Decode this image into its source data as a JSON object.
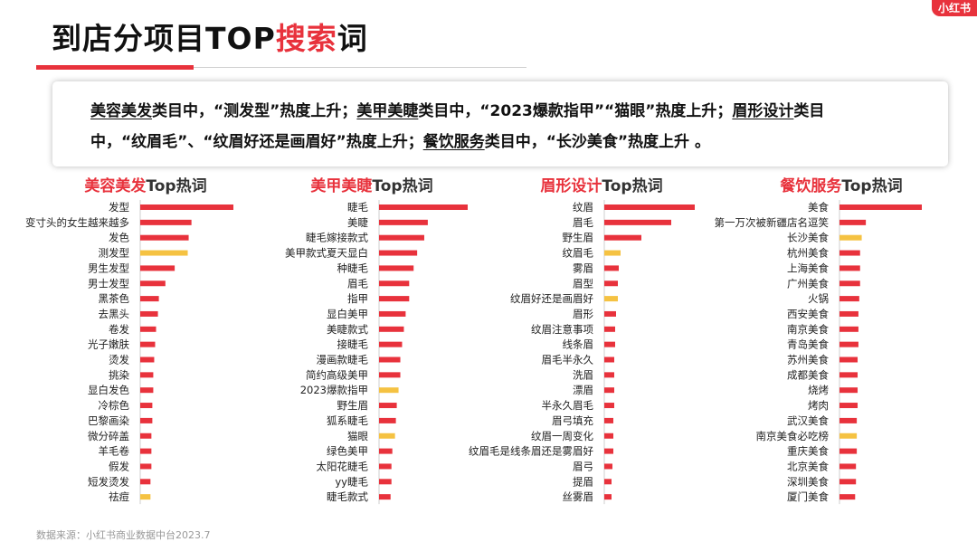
{
  "logo": {
    "text": "小红书"
  },
  "title": {
    "part1": "到店分项目TOP",
    "part2": "搜索",
    "part3": "词"
  },
  "summary": {
    "s1": "美容美发",
    "s2": "类目中，“测发型”热度上升；",
    "s3": "美甲美睫",
    "s4": "类目中，“2023爆款指甲”“猫眼”热度上升；",
    "s5": "眉形设计",
    "s6": "类目",
    "s7": "中，“纹眉毛”、“纹眉好还是画眉好”热度上升；",
    "s8": "餐饮服务",
    "s9": "类目中，“长沙美食”热度上升 。"
  },
  "footer": {
    "text": "数据来源：小红书商业数据中台2023.7"
  },
  "colors": {
    "red": "#e8323c",
    "yellow": "#f5c242"
  },
  "chart_data": [
    {
      "type": "bar",
      "orientation": "horizontal",
      "title": {
        "highlight": "美容美发",
        "rest": "Top热词"
      },
      "categories": [
        "发型",
        "变寸头的女生越来越多",
        "发色",
        "测发型",
        "男生发型",
        "男士发型",
        "黑茶色",
        "去黑头",
        "卷发",
        "光子嫩肤",
        "烫发",
        "挑染",
        "显白发色",
        "冷棕色",
        "巴黎画染",
        "微分碎盖",
        "羊毛卷",
        "假发",
        "短发烫发",
        "祛痘"
      ],
      "values": [
        100,
        55,
        52,
        51,
        37,
        27,
        20,
        19,
        17,
        16,
        15,
        14,
        14,
        13,
        13,
        12,
        12,
        12,
        11,
        11
      ],
      "highlight": [
        3,
        19
      ]
    },
    {
      "type": "bar",
      "orientation": "horizontal",
      "title": {
        "highlight": "美甲美睫",
        "rest": "Top热词"
      },
      "categories": [
        "睫毛",
        "美睫",
        "睫毛嫁接款式",
        "美甲款式夏天显白",
        "种睫毛",
        "眉毛",
        "指甲",
        "显白美甲",
        "美睫款式",
        "接睫毛",
        "漫画款睫毛",
        "简约高级美甲",
        "2023爆款指甲",
        "野生眉",
        "狐系睫毛",
        "猫眼",
        "绿色美甲",
        "太阳花睫毛",
        "yy睫毛",
        "睫毛款式"
      ],
      "values": [
        100,
        55,
        51,
        43,
        39,
        34,
        34,
        30,
        28,
        26,
        24,
        24,
        22,
        20,
        19,
        18,
        15,
        14,
        14,
        13
      ],
      "highlight": [
        12,
        15
      ]
    },
    {
      "type": "bar",
      "orientation": "horizontal",
      "title": {
        "highlight": "眉形设计",
        "rest": "Top热词"
      },
      "categories": [
        "纹眉",
        "眉毛",
        "野生眉",
        "纹眉毛",
        "雾眉",
        "眉型",
        "纹眉好还是画眉好",
        "眉形",
        "纹眉注意事项",
        "线条眉",
        "眉毛半永久",
        "洗眉",
        "漂眉",
        "半永久眉毛",
        "眉弓填充",
        "纹眉一周变化",
        "纹眉毛是线条眉还是雾眉好",
        "眉弓",
        "提眉",
        "丝雾眉"
      ],
      "values": [
        100,
        74,
        41,
        18,
        16,
        15,
        15,
        13,
        12,
        12,
        11,
        11,
        11,
        11,
        10,
        10,
        10,
        9,
        8,
        8
      ],
      "highlight": [
        3,
        6
      ]
    },
    {
      "type": "bar",
      "orientation": "horizontal",
      "title": {
        "highlight": "餐饮服务",
        "rest": "Top热词"
      },
      "categories": [
        "美食",
        "第一万次被新疆店名逗笑",
        "长沙美食",
        "杭州美食",
        "上海美食",
        "广州美食",
        "火锅",
        "西安美食",
        "南京美食",
        "青岛美食",
        "苏州美食",
        "成都美食",
        "烧烤",
        "烤肉",
        "武汉美食",
        "南京美食必吃榜",
        "重庆美食",
        "北京美食",
        "深圳美食",
        "厦门美食"
      ],
      "values": [
        100,
        32,
        27,
        25,
        25,
        25,
        24,
        23,
        23,
        23,
        22,
        22,
        22,
        22,
        21,
        21,
        21,
        20,
        20,
        19
      ],
      "highlight": [
        2,
        15
      ]
    }
  ]
}
